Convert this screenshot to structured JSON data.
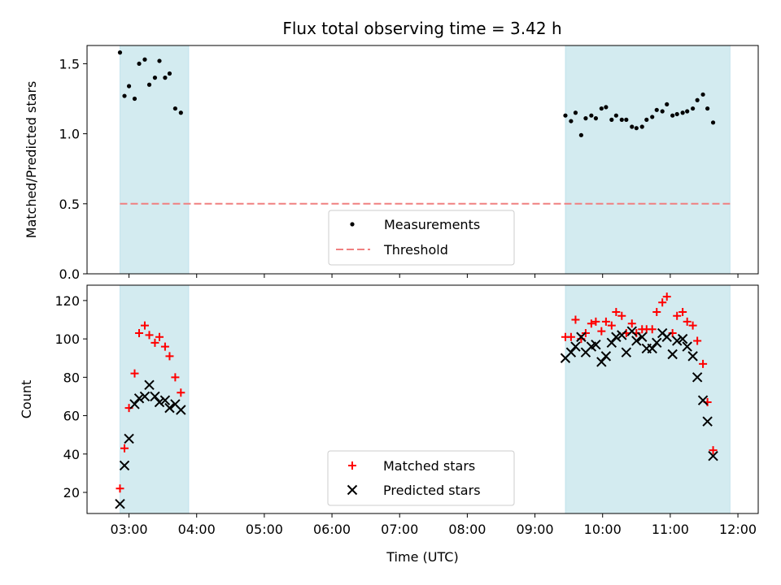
{
  "figure": {
    "title": "Flux total observing time = 3.42 h"
  },
  "chart_data": [
    {
      "type": "scatter",
      "panel": "top",
      "ylabel": "Matched/Predicted stars",
      "xlim_hours": [
        2.38,
        12.3
      ],
      "ylim": [
        0,
        1.63
      ],
      "yticks": [
        0.0,
        0.5,
        1.0,
        1.5
      ],
      "ytick_labels": [
        "0.0",
        "0.5",
        "1.0",
        "1.5"
      ],
      "shaded_intervals": [
        [
          "02:52",
          "03:53"
        ],
        [
          "09:27",
          "11:53"
        ]
      ],
      "shade_color": "#d3ebf0",
      "threshold": {
        "name": "Threshold",
        "value": 0.5,
        "x_range": [
          "02:52",
          "11:53"
        ],
        "color": "#f08080"
      },
      "series": [
        {
          "name": "Measurements",
          "marker": "dot",
          "color": "#000000",
          "points": [
            [
              "02:52",
              1.58
            ],
            [
              "02:56",
              1.27
            ],
            [
              "03:00",
              1.34
            ],
            [
              "03:05",
              1.25
            ],
            [
              "03:09",
              1.5
            ],
            [
              "03:14",
              1.53
            ],
            [
              "03:18",
              1.35
            ],
            [
              "03:23",
              1.4
            ],
            [
              "03:27",
              1.52
            ],
            [
              "03:32",
              1.4
            ],
            [
              "03:36",
              1.43
            ],
            [
              "03:41",
              1.18
            ],
            [
              "03:46",
              1.15
            ],
            [
              "09:27",
              1.13
            ],
            [
              "09:32",
              1.09
            ],
            [
              "09:36",
              1.15
            ],
            [
              "09:41",
              0.99
            ],
            [
              "09:45",
              1.11
            ],
            [
              "09:50",
              1.13
            ],
            [
              "09:54",
              1.11
            ],
            [
              "09:59",
              1.18
            ],
            [
              "10:03",
              1.19
            ],
            [
              "10:08",
              1.1
            ],
            [
              "10:12",
              1.13
            ],
            [
              "10:17",
              1.1
            ],
            [
              "10:21",
              1.1
            ],
            [
              "10:26",
              1.05
            ],
            [
              "10:30",
              1.04
            ],
            [
              "10:35",
              1.05
            ],
            [
              "10:39",
              1.1
            ],
            [
              "10:44",
              1.12
            ],
            [
              "10:48",
              1.17
            ],
            [
              "10:53",
              1.16
            ],
            [
              "10:57",
              1.21
            ],
            [
              "11:02",
              1.13
            ],
            [
              "11:06",
              1.14
            ],
            [
              "11:11",
              1.15
            ],
            [
              "11:15",
              1.16
            ],
            [
              "11:20",
              1.18
            ],
            [
              "11:24",
              1.24
            ],
            [
              "11:29",
              1.28
            ],
            [
              "11:33",
              1.18
            ],
            [
              "11:38",
              1.08
            ]
          ]
        }
      ],
      "legend": {
        "placement": "lower-center",
        "entries": [
          "Measurements",
          "Threshold"
        ]
      }
    },
    {
      "type": "scatter",
      "panel": "bottom",
      "xlabel": "Time (UTC)",
      "ylabel": "Count",
      "xlim_hours": [
        2.38,
        12.3
      ],
      "ylim": [
        9,
        128
      ],
      "xticks": [
        "03:00",
        "04:00",
        "05:00",
        "06:00",
        "07:00",
        "08:00",
        "09:00",
        "10:00",
        "11:00",
        "12:00"
      ],
      "yticks": [
        20,
        40,
        60,
        80,
        100,
        120
      ],
      "ytick_labels": [
        "20",
        "40",
        "60",
        "80",
        "100",
        "120"
      ],
      "shaded_intervals": [
        [
          "02:52",
          "03:53"
        ],
        [
          "09:27",
          "11:53"
        ]
      ],
      "shade_color": "#d3ebf0",
      "series": [
        {
          "name": "Matched stars",
          "marker": "plus",
          "color": "#ff0000",
          "points": [
            [
              "02:52",
              22
            ],
            [
              "02:56",
              43
            ],
            [
              "03:00",
              64
            ],
            [
              "03:05",
              82
            ],
            [
              "03:09",
              103
            ],
            [
              "03:14",
              107
            ],
            [
              "03:18",
              102
            ],
            [
              "03:23",
              98
            ],
            [
              "03:27",
              101
            ],
            [
              "03:32",
              96
            ],
            [
              "03:36",
              91
            ],
            [
              "03:41",
              80
            ],
            [
              "03:46",
              72
            ],
            [
              "09:27",
              101
            ],
            [
              "09:32",
              101
            ],
            [
              "09:36",
              110
            ],
            [
              "09:41",
              100
            ],
            [
              "09:45",
              103
            ],
            [
              "09:50",
              108
            ],
            [
              "09:54",
              109
            ],
            [
              "09:59",
              104
            ],
            [
              "10:03",
              109
            ],
            [
              "10:08",
              107
            ],
            [
              "10:12",
              114
            ],
            [
              "10:17",
              112
            ],
            [
              "10:21",
              103
            ],
            [
              "10:26",
              108
            ],
            [
              "10:30",
              103
            ],
            [
              "10:35",
              105
            ],
            [
              "10:39",
              105
            ],
            [
              "10:44",
              105
            ],
            [
              "10:48",
              114
            ],
            [
              "10:53",
              119
            ],
            [
              "10:57",
              122
            ],
            [
              "11:02",
              103
            ],
            [
              "11:06",
              112
            ],
            [
              "11:11",
              114
            ],
            [
              "11:15",
              109
            ],
            [
              "11:20",
              107
            ],
            [
              "11:24",
              99
            ],
            [
              "11:29",
              87
            ],
            [
              "11:33",
              67
            ],
            [
              "11:38",
              42
            ]
          ]
        },
        {
          "name": "Predicted stars",
          "marker": "x",
          "color": "#000000",
          "points": [
            [
              "02:52",
              14
            ],
            [
              "02:56",
              34
            ],
            [
              "03:00",
              48
            ],
            [
              "03:05",
              66
            ],
            [
              "03:09",
              69
            ],
            [
              "03:14",
              70
            ],
            [
              "03:18",
              76
            ],
            [
              "03:23",
              70
            ],
            [
              "03:27",
              67
            ],
            [
              "03:32",
              68
            ],
            [
              "03:36",
              64
            ],
            [
              "03:41",
              66
            ],
            [
              "03:46",
              63
            ],
            [
              "09:27",
              90
            ],
            [
              "09:32",
              93
            ],
            [
              "09:36",
              96
            ],
            [
              "09:41",
              101
            ],
            [
              "09:45",
              93
            ],
            [
              "09:50",
              96
            ],
            [
              "09:54",
              97
            ],
            [
              "09:59",
              88
            ],
            [
              "10:03",
              91
            ],
            [
              "10:08",
              98
            ],
            [
              "10:12",
              101
            ],
            [
              "10:17",
              102
            ],
            [
              "10:21",
              93
            ],
            [
              "10:26",
              104
            ],
            [
              "10:30",
              99
            ],
            [
              "10:35",
              101
            ],
            [
              "10:39",
              95
            ],
            [
              "10:44",
              95
            ],
            [
              "10:48",
              98
            ],
            [
              "10:53",
              103
            ],
            [
              "10:57",
              101
            ],
            [
              "11:02",
              92
            ],
            [
              "11:06",
              99
            ],
            [
              "11:11",
              100
            ],
            [
              "11:15",
              96
            ],
            [
              "11:20",
              91
            ],
            [
              "11:24",
              80
            ],
            [
              "11:29",
              68
            ],
            [
              "11:33",
              57
            ],
            [
              "11:38",
              39
            ]
          ]
        }
      ],
      "legend": {
        "placement": "lower-center",
        "entries": [
          "Matched stars",
          "Predicted stars"
        ]
      }
    }
  ]
}
